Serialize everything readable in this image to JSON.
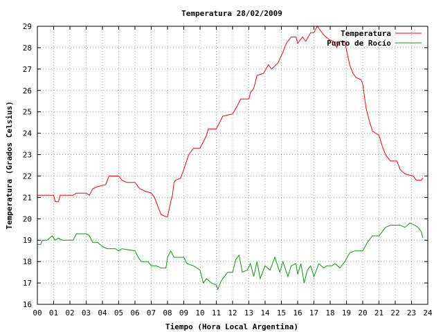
{
  "chart_data": {
    "type": "line",
    "title": "Temperatura 28/02/2009",
    "xlabel": "Tiempo (Hora Local Argentina)",
    "ylabel": "Temperatura (Grados Celsius)",
    "xlim": [
      0,
      24
    ],
    "ylim": [
      16,
      29
    ],
    "x_ticks": [
      "00",
      "01",
      "02",
      "03",
      "04",
      "05",
      "06",
      "07",
      "08",
      "09",
      "10",
      "11",
      "12",
      "13",
      "14",
      "15",
      "16",
      "17",
      "18",
      "19",
      "20",
      "21",
      "22",
      "23",
      "24"
    ],
    "y_ticks": [
      "16",
      "17",
      "18",
      "19",
      "20",
      "21",
      "22",
      "23",
      "24",
      "25",
      "26",
      "27",
      "28",
      "29"
    ],
    "grid": true,
    "legend_position": "top-right",
    "series": [
      {
        "name": "Temperatura",
        "color": "#ff0000",
        "points": [
          [
            0.0,
            21.1
          ],
          [
            1.0,
            21.1
          ],
          [
            1.1,
            20.8
          ],
          [
            1.3,
            20.8
          ],
          [
            1.4,
            21.1
          ],
          [
            2.2,
            21.1
          ],
          [
            2.4,
            21.2
          ],
          [
            3.0,
            21.2
          ],
          [
            3.2,
            21.1
          ],
          [
            3.4,
            21.4
          ],
          [
            3.7,
            21.5
          ],
          [
            4.2,
            21.6
          ],
          [
            4.4,
            22.0
          ],
          [
            5.0,
            22.0
          ],
          [
            5.2,
            21.8
          ],
          [
            5.5,
            21.7
          ],
          [
            6.0,
            21.7
          ],
          [
            6.3,
            21.4
          ],
          [
            6.6,
            21.3
          ],
          [
            7.0,
            21.2
          ],
          [
            7.2,
            21.0
          ],
          [
            7.4,
            20.6
          ],
          [
            7.6,
            20.2
          ],
          [
            7.9,
            20.1
          ],
          [
            8.0,
            20.1
          ],
          [
            8.2,
            20.8
          ],
          [
            8.3,
            21.1
          ],
          [
            8.4,
            21.7
          ],
          [
            8.5,
            21.8
          ],
          [
            8.8,
            21.9
          ],
          [
            9.0,
            22.3
          ],
          [
            9.3,
            23.0
          ],
          [
            9.6,
            23.3
          ],
          [
            10.0,
            23.3
          ],
          [
            10.2,
            23.6
          ],
          [
            10.4,
            23.9
          ],
          [
            10.5,
            24.2
          ],
          [
            11.0,
            24.2
          ],
          [
            11.2,
            24.5
          ],
          [
            11.4,
            24.8
          ],
          [
            12.0,
            24.9
          ],
          [
            12.3,
            25.3
          ],
          [
            12.5,
            25.6
          ],
          [
            13.0,
            25.6
          ],
          [
            13.1,
            25.9
          ],
          [
            13.3,
            26.1
          ],
          [
            13.5,
            26.7
          ],
          [
            13.9,
            26.8
          ],
          [
            14.2,
            27.2
          ],
          [
            14.4,
            27.0
          ],
          [
            14.8,
            27.3
          ],
          [
            15.1,
            27.8
          ],
          [
            15.3,
            28.2
          ],
          [
            15.6,
            28.5
          ],
          [
            15.9,
            28.5
          ],
          [
            16.0,
            28.2
          ],
          [
            16.3,
            28.5
          ],
          [
            16.5,
            28.3
          ],
          [
            16.8,
            28.7
          ],
          [
            17.0,
            28.7
          ],
          [
            17.2,
            29.0
          ],
          [
            17.4,
            28.8
          ],
          [
            17.6,
            28.6
          ],
          [
            17.9,
            28.4
          ],
          [
            18.2,
            28.3
          ],
          [
            18.4,
            28.0
          ],
          [
            18.6,
            28.3
          ],
          [
            18.9,
            28.3
          ],
          [
            19.0,
            27.9
          ],
          [
            19.2,
            27.2
          ],
          [
            19.4,
            26.8
          ],
          [
            19.6,
            26.6
          ],
          [
            19.9,
            26.5
          ],
          [
            20.0,
            26.3
          ],
          [
            20.2,
            25.2
          ],
          [
            20.4,
            24.6
          ],
          [
            20.6,
            24.1
          ],
          [
            21.0,
            23.9
          ],
          [
            21.2,
            23.4
          ],
          [
            21.4,
            23.0
          ],
          [
            21.7,
            22.7
          ],
          [
            22.1,
            22.7
          ],
          [
            22.3,
            22.3
          ],
          [
            22.6,
            22.1
          ],
          [
            23.1,
            22.0
          ],
          [
            23.3,
            21.8
          ],
          [
            23.6,
            21.8
          ],
          [
            23.7,
            21.9
          ]
        ]
      },
      {
        "name": "Punto de Rocío",
        "color": "#00a000",
        "points": [
          [
            0.0,
            18.8
          ],
          [
            0.2,
            18.8
          ],
          [
            0.3,
            19.0
          ],
          [
            0.6,
            19.0
          ],
          [
            0.9,
            19.2
          ],
          [
            1.1,
            19.0
          ],
          [
            1.3,
            19.1
          ],
          [
            1.5,
            19.0
          ],
          [
            2.2,
            19.0
          ],
          [
            2.4,
            19.3
          ],
          [
            3.0,
            19.3
          ],
          [
            3.2,
            19.2
          ],
          [
            3.4,
            18.9
          ],
          [
            3.7,
            18.9
          ],
          [
            4.0,
            18.7
          ],
          [
            4.3,
            18.6
          ],
          [
            4.8,
            18.6
          ],
          [
            5.0,
            18.5
          ],
          [
            5.2,
            18.6
          ],
          [
            6.0,
            18.5
          ],
          [
            6.2,
            18.2
          ],
          [
            6.4,
            18.0
          ],
          [
            6.8,
            18.0
          ],
          [
            7.0,
            17.8
          ],
          [
            7.3,
            17.8
          ],
          [
            7.6,
            17.7
          ],
          [
            7.9,
            17.7
          ],
          [
            8.0,
            18.2
          ],
          [
            8.2,
            18.5
          ],
          [
            8.4,
            18.2
          ],
          [
            9.0,
            18.2
          ],
          [
            9.2,
            17.9
          ],
          [
            9.6,
            17.8
          ],
          [
            10.0,
            17.6
          ],
          [
            10.2,
            17.0
          ],
          [
            10.4,
            17.2
          ],
          [
            10.7,
            17.0
          ],
          [
            11.0,
            16.9
          ],
          [
            11.1,
            16.7
          ],
          [
            11.3,
            17.1
          ],
          [
            11.5,
            17.3
          ],
          [
            11.7,
            17.5
          ],
          [
            12.0,
            17.5
          ],
          [
            12.2,
            18.1
          ],
          [
            12.4,
            18.3
          ],
          [
            12.6,
            17.5
          ],
          [
            12.9,
            17.6
          ],
          [
            13.1,
            17.9
          ],
          [
            13.3,
            17.3
          ],
          [
            13.5,
            18.0
          ],
          [
            13.7,
            17.2
          ],
          [
            14.0,
            17.8
          ],
          [
            14.3,
            17.6
          ],
          [
            14.6,
            18.2
          ],
          [
            14.9,
            17.5
          ],
          [
            15.1,
            18.0
          ],
          [
            15.4,
            17.3
          ],
          [
            15.6,
            17.8
          ],
          [
            15.9,
            17.9
          ],
          [
            16.0,
            17.4
          ],
          [
            16.2,
            17.9
          ],
          [
            16.4,
            17.0
          ],
          [
            16.6,
            17.6
          ],
          [
            16.8,
            17.8
          ],
          [
            17.0,
            17.3
          ],
          [
            17.3,
            17.9
          ],
          [
            17.6,
            17.7
          ],
          [
            17.8,
            17.8
          ],
          [
            18.1,
            17.8
          ],
          [
            18.3,
            17.9
          ],
          [
            18.6,
            17.7
          ],
          [
            18.9,
            18.0
          ],
          [
            19.2,
            18.4
          ],
          [
            19.5,
            18.5
          ],
          [
            20.0,
            18.5
          ],
          [
            20.3,
            18.9
          ],
          [
            20.6,
            19.2
          ],
          [
            21.0,
            19.2
          ],
          [
            21.2,
            19.4
          ],
          [
            21.4,
            19.6
          ],
          [
            21.7,
            19.7
          ],
          [
            22.3,
            19.7
          ],
          [
            22.6,
            19.6
          ],
          [
            22.9,
            19.8
          ],
          [
            23.2,
            19.7
          ],
          [
            23.4,
            19.6
          ],
          [
            23.6,
            19.4
          ],
          [
            23.7,
            19.1
          ]
        ]
      }
    ]
  }
}
